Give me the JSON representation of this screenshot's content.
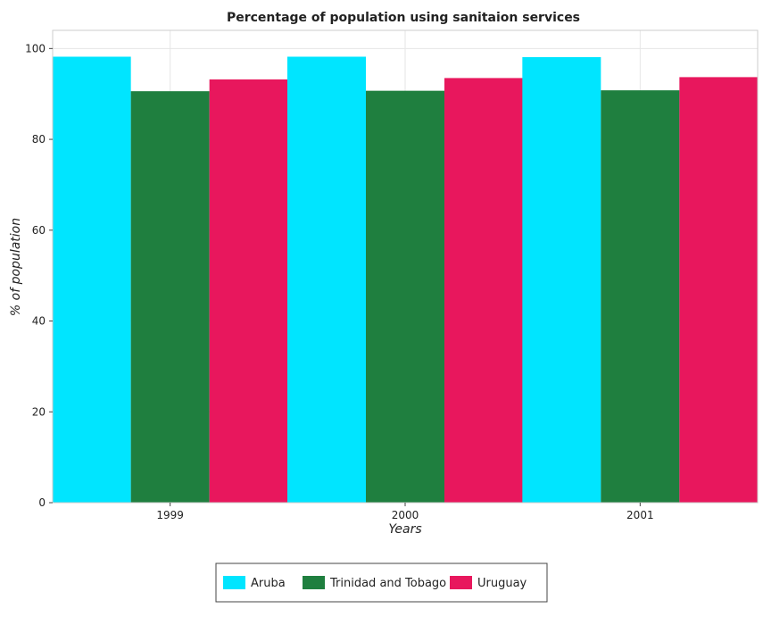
{
  "chart_data": {
    "type": "bar",
    "title": "Percentage of population using sanitaion services",
    "xlabel": "Years",
    "ylabel": "% of population",
    "categories": [
      "1999",
      "2000",
      "2001"
    ],
    "series": [
      {
        "name": "Aruba",
        "color": "#00e5ff",
        "values": [
          98.2,
          98.2,
          98.1
        ]
      },
      {
        "name": "Trinidad and Tobago",
        "color": "#1f7f3f",
        "values": [
          90.6,
          90.7,
          90.8
        ]
      },
      {
        "name": "Uruguay",
        "color": "#e8175d",
        "values": [
          93.2,
          93.5,
          93.7
        ]
      }
    ],
    "ylim": [
      0,
      104
    ],
    "yticks": [
      "0",
      "20",
      "40",
      "60",
      "80",
      "100"
    ],
    "grid": true,
    "legend_position": "bottom-center"
  }
}
